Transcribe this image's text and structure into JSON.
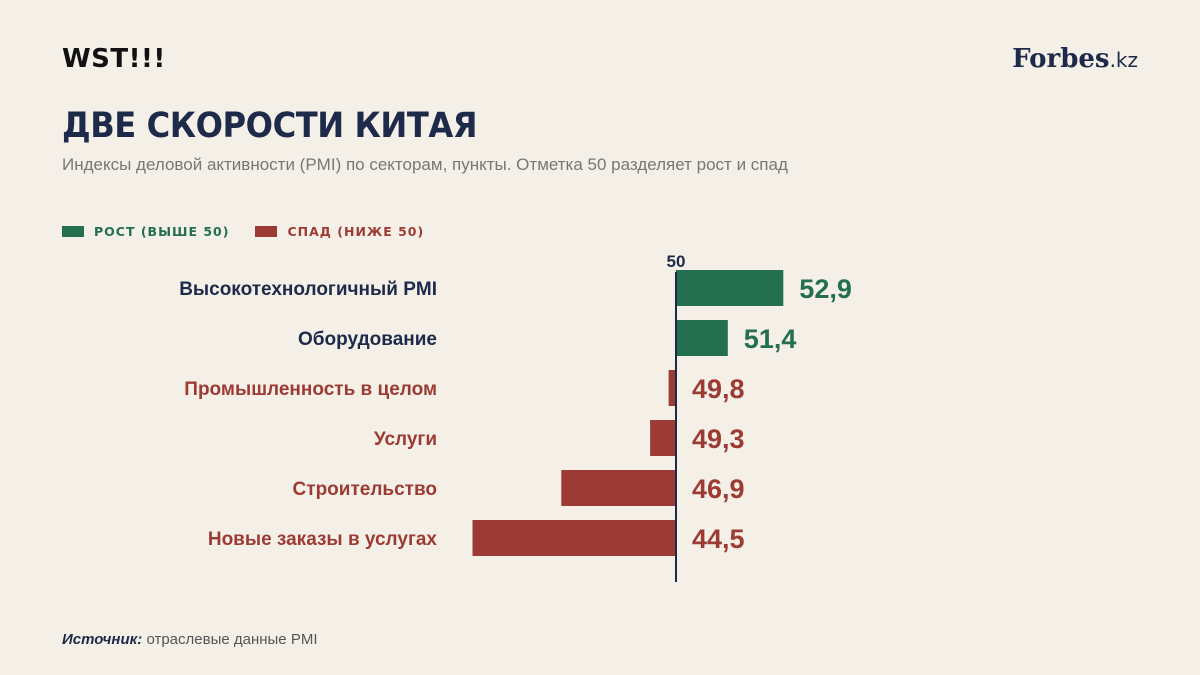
{
  "header": {
    "brand": "WST!!!",
    "publisher_name": "Forbes",
    "publisher_suffix": ".kz",
    "title": "ДВЕ СКОРОСТИ КИТАЯ",
    "subtitle": "Индексы деловой активности (PMI) по секторам, пункты. Отметка 50 разделяет рост и спад"
  },
  "legend": {
    "growth_label": "РОСТ (ВЫШЕ 50)",
    "decline_label": "СПАД (НИЖЕ 50)"
  },
  "colors": {
    "growth": "#236f4f",
    "decline": "#9c3b33",
    "axis": "#1e2a4a",
    "label_dark": "#1e2a4a"
  },
  "source": {
    "key": "Источник:",
    "text": "отраслевые данные PMI"
  },
  "chart_data": {
    "type": "bar",
    "orientation": "horizontal",
    "baseline": 50,
    "baseline_label": "50",
    "categories": [
      "Высокотехнологичный PMI",
      "Оборудование",
      "Промышленность в целом",
      "Услуги",
      "Строительство",
      "Новые заказы в услугах"
    ],
    "values": [
      52.9,
      51.4,
      49.8,
      49.3,
      46.9,
      44.5
    ],
    "value_labels": [
      "52,9",
      "51,4",
      "49,8",
      "49,3",
      "46,9",
      "44,5"
    ],
    "xlim": [
      44.5,
      52.9
    ],
    "grid": false
  }
}
